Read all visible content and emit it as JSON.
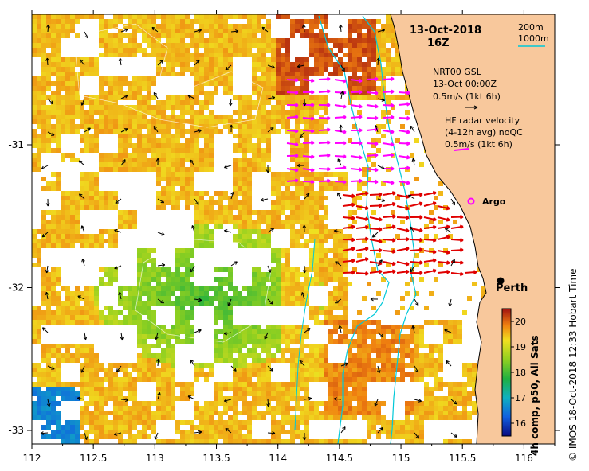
{
  "title": {
    "date": "13-Oct-2018",
    "hour": "16Z"
  },
  "depth_legend": {
    "line1": "200m",
    "line2": "1000m"
  },
  "gsl_legend": {
    "line1": "NRT00 GSL",
    "line2": "13-Oct 00:00Z",
    "line3": "0.5m/s (1kt 6h)"
  },
  "radar_legend": {
    "line1": "HF radar velocity",
    "line2": "(4-12h avg) noQC",
    "line3": "0.5m/s (1kt 6h)"
  },
  "places": {
    "argo": "Argo",
    "perth": "Perth"
  },
  "axes": {
    "x_ticks": [
      "112",
      "112.5",
      "113",
      "113.5",
      "114",
      "114.5",
      "115",
      "115.5",
      "116"
    ],
    "y_ticks": [
      "-31",
      "-32",
      "-33"
    ]
  },
  "colorbar": {
    "ticks": [
      "20",
      "19",
      "18",
      "17",
      "16"
    ],
    "label": "4h comp, p50, All Sats",
    "range": [
      15.5,
      20.5
    ]
  },
  "credit": "© IMOS 18-Oct-2018 12:33 Hobart Time",
  "colors": {
    "land": "#f8c89c",
    "radar_arrows": "#e00000",
    "gsl_arrows": "#ff00ff",
    "isobath_200": "#00c8d8",
    "isobath_1000": "#00c8d8"
  }
}
